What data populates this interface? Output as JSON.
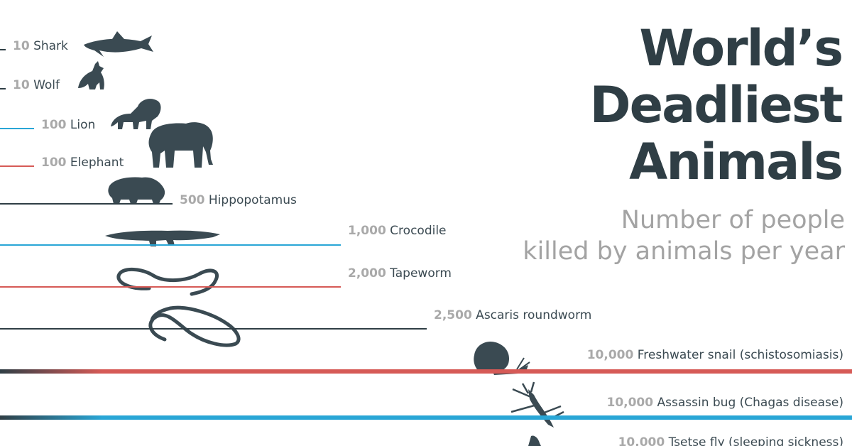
{
  "title": {
    "lines": [
      "World’s",
      "Deadliest",
      "Animals"
    ]
  },
  "subtitle": {
    "lines": [
      "Number of people",
      "killed by animals per year"
    ]
  },
  "colors": {
    "dark": "#2f3e45",
    "red": "#d65a56",
    "blue": "#29a6d6",
    "number": "#a9a9a9",
    "label": "#3b4a52",
    "title": "#2f3e45",
    "subtitle": "#a3a3a3"
  },
  "chart_data": {
    "type": "bar",
    "orientation": "horizontal",
    "categories": [
      "Shark",
      "Wolf",
      "Lion",
      "Elephant",
      "Hippopotamus",
      "Crocodile",
      "Tapeworm",
      "Ascaris roundworm",
      "Freshwater snail (schistosomiasis)",
      "Assassin bug (Chagas disease)",
      "Tsetse fly (sleeping sickness)"
    ],
    "value_labels": [
      "10",
      "10",
      "100",
      "100",
      "500",
      "1,000",
      "2,000",
      "2,500",
      "10,000",
      "10,000",
      "10,000"
    ],
    "values": [
      10,
      10,
      100,
      100,
      500,
      1000,
      2000,
      2500,
      10000,
      10000,
      10000
    ],
    "bar_colors": [
      "dark",
      "dark",
      "blue",
      "red",
      "dark",
      "blue",
      "red",
      "dark",
      "red",
      "blue",
      "dark"
    ],
    "icons": [
      "shark-icon",
      "wolf-icon",
      "lion-icon",
      "elephant-icon",
      "hippo-icon",
      "crocodile-icon",
      "tapeworm-icon",
      "roundworm-icon",
      "snail-icon",
      "assassin-bug-icon",
      "tsetse-fly-icon"
    ]
  }
}
